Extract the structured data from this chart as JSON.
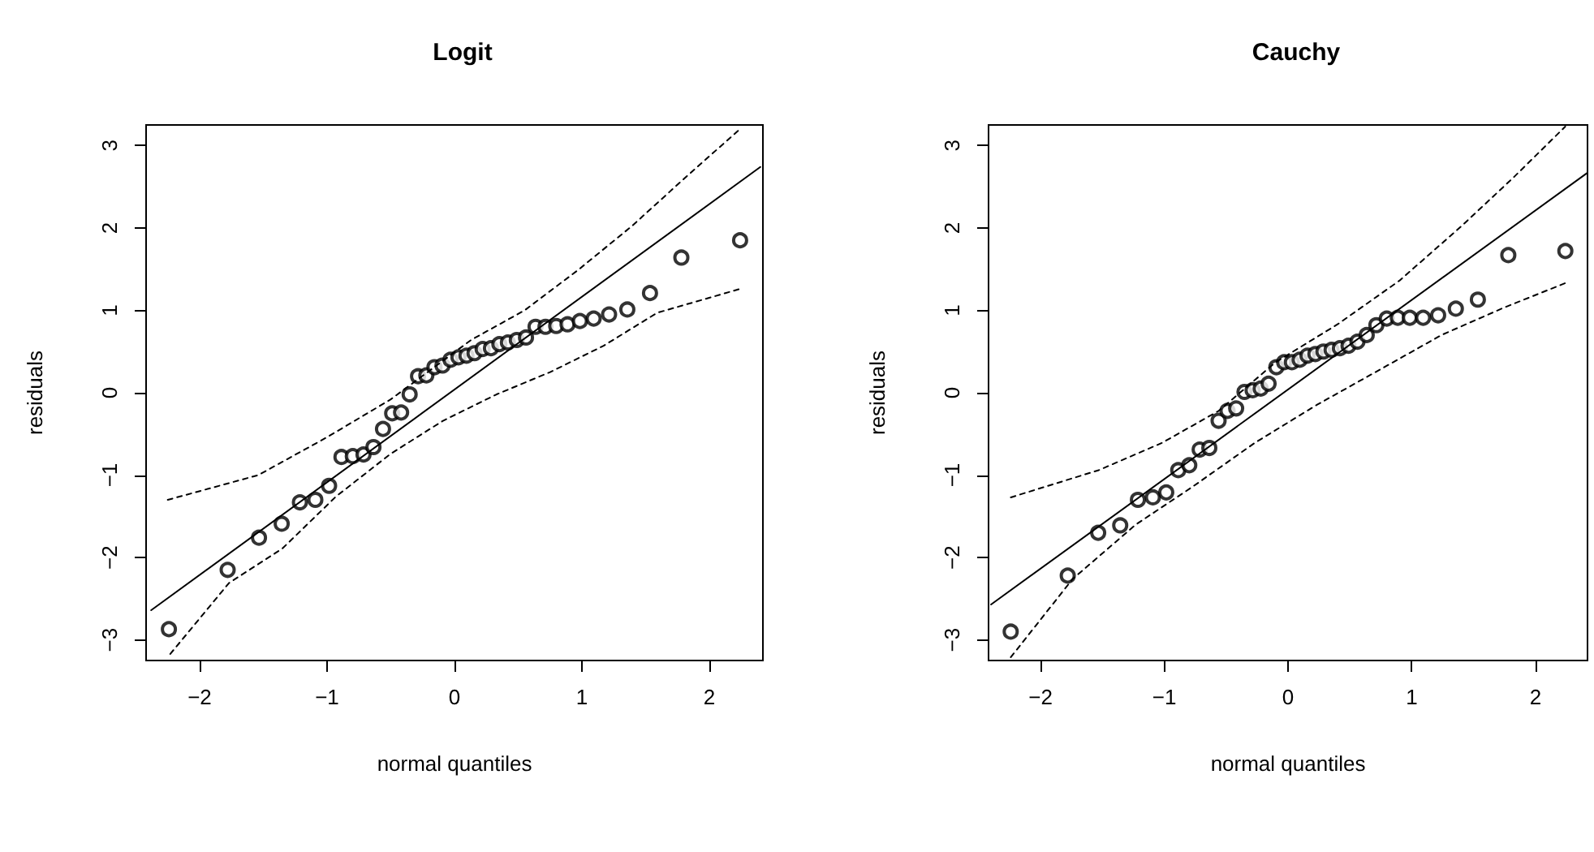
{
  "chart_data": [
    {
      "type": "scatter",
      "title": "Logit",
      "xlabel": "normal quantiles",
      "ylabel": "residuals",
      "xlim": [
        -2.42,
        2.42
      ],
      "ylim": [
        -3.25,
        3.25
      ],
      "xticks": [
        -2,
        -1,
        0,
        1,
        2
      ],
      "yticks": [
        -3,
        -2,
        -1,
        0,
        1,
        2,
        3
      ],
      "grid": false,
      "x": [
        -2.241,
        -1.78,
        -1.534,
        -1.356,
        -1.213,
        -1.092,
        -0.984,
        -0.887,
        -0.798,
        -0.714,
        -0.636,
        -0.561,
        -0.489,
        -0.419,
        -0.352,
        -0.286,
        -0.221,
        -0.157,
        -0.094,
        -0.031,
        0.031,
        0.094,
        0.157,
        0.221,
        0.286,
        0.352,
        0.419,
        0.489,
        0.561,
        0.636,
        0.714,
        0.798,
        0.887,
        0.984,
        1.092,
        1.213,
        1.356,
        1.534,
        1.78,
        2.241
      ],
      "series": [
        {
          "marker": "circle",
          "color": "#000000",
          "values": [
            -2.87,
            -2.15,
            -1.76,
            -1.59,
            -1.33,
            -1.3,
            -1.13,
            -0.78,
            -0.77,
            -0.75,
            -0.66,
            -0.44,
            -0.25,
            -0.24,
            -0.02,
            0.2,
            0.21,
            0.31,
            0.33,
            0.4,
            0.43,
            0.45,
            0.48,
            0.53,
            0.54,
            0.59,
            0.61,
            0.64,
            0.67,
            0.8,
            0.8,
            0.81,
            0.83,
            0.87,
            0.9,
            0.95,
            1.01,
            1.21,
            1.64,
            1.85
          ]
        },
        {
          "type": "line",
          "color": "#000000",
          "line_style": "solid",
          "x": [
            -2.38,
            2.4
          ],
          "values": [
            -2.64,
            2.74
          ]
        },
        {
          "type": "line",
          "color": "#000000",
          "line_style": "dashed",
          "x": [
            -2.25,
            -1.54,
            -1.0,
            -0.5,
            0.13,
            0.55,
            0.97,
            1.39,
            1.81,
            2.24
          ],
          "values": [
            -1.3,
            -1.0,
            -0.54,
            -0.08,
            0.64,
            1.0,
            1.49,
            2.02,
            2.61,
            3.2
          ]
        },
        {
          "type": "line",
          "color": "#000000",
          "line_style": "dashed",
          "x": [
            -2.23,
            -1.77,
            -1.35,
            -0.93,
            -0.5,
            -0.09,
            0.33,
            0.75,
            1.17,
            1.59,
            2.24
          ],
          "values": [
            -3.17,
            -2.31,
            -1.89,
            -1.26,
            -0.74,
            -0.34,
            -0.02,
            0.25,
            0.57,
            0.97,
            1.26
          ]
        }
      ]
    },
    {
      "type": "scatter",
      "title": "Cauchy",
      "xlabel": "normal quantiles",
      "ylabel": "residuals",
      "xlim": [
        -2.42,
        2.42
      ],
      "ylim": [
        -3.25,
        3.25
      ],
      "xticks": [
        -2,
        -1,
        0,
        1,
        2
      ],
      "yticks": [
        -3,
        -2,
        -1,
        0,
        1,
        2,
        3
      ],
      "grid": false,
      "x": [
        -2.241,
        -1.78,
        -1.534,
        -1.356,
        -1.213,
        -1.092,
        -0.984,
        -0.887,
        -0.798,
        -0.714,
        -0.636,
        -0.561,
        -0.489,
        -0.419,
        -0.352,
        -0.286,
        -0.221,
        -0.157,
        -0.094,
        -0.031,
        0.031,
        0.094,
        0.157,
        0.221,
        0.286,
        0.352,
        0.419,
        0.489,
        0.561,
        0.636,
        0.714,
        0.798,
        0.887,
        0.984,
        1.092,
        1.213,
        1.356,
        1.534,
        1.78,
        2.241
      ],
      "series": [
        {
          "marker": "circle",
          "color": "#000000",
          "values": [
            -2.9,
            -2.22,
            -1.7,
            -1.61,
            -1.3,
            -1.27,
            -1.21,
            -0.94,
            -0.88,
            -0.69,
            -0.67,
            -0.34,
            -0.22,
            -0.19,
            0.01,
            0.03,
            0.05,
            0.11,
            0.31,
            0.37,
            0.37,
            0.4,
            0.45,
            0.47,
            0.5,
            0.52,
            0.54,
            0.57,
            0.62,
            0.7,
            0.82,
            0.9,
            0.91,
            0.91,
            0.91,
            0.94,
            1.02,
            1.13,
            1.67,
            1.72
          ]
        },
        {
          "type": "line",
          "color": "#000000",
          "line_style": "solid",
          "x": [
            -2.4,
            2.42
          ],
          "values": [
            -2.57,
            2.67
          ]
        },
        {
          "type": "line",
          "color": "#000000",
          "line_style": "dashed",
          "x": [
            -2.24,
            -1.53,
            -1.02,
            -0.56,
            -0.1,
            0.4,
            0.9,
            1.4,
            1.82,
            2.24
          ],
          "values": [
            -1.27,
            -0.94,
            -0.61,
            -0.22,
            0.37,
            0.83,
            1.36,
            2.02,
            2.61,
            3.23
          ]
        },
        {
          "type": "line",
          "color": "#000000",
          "line_style": "dashed",
          "x": [
            -2.24,
            -1.74,
            -1.23,
            -0.77,
            -0.27,
            0.23,
            0.73,
            1.24,
            1.74,
            2.24
          ],
          "values": [
            -3.21,
            -2.26,
            -1.6,
            -1.14,
            -0.61,
            -0.15,
            0.27,
            0.7,
            1.03,
            1.33
          ]
        }
      ]
    }
  ]
}
